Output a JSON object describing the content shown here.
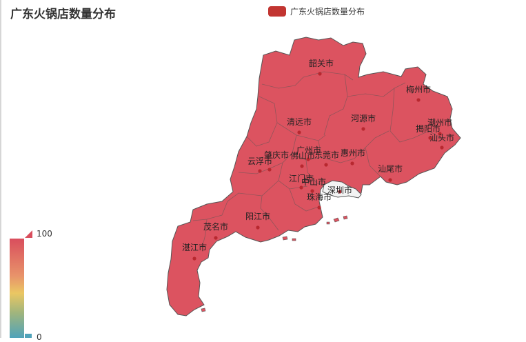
{
  "title": "广东火锅店数量分布",
  "legend": {
    "label": "广东火锅店数量分布",
    "color": "#c23531"
  },
  "visual_map": {
    "max_label": "100",
    "min_label": "0",
    "max": 100,
    "min": 0,
    "colors": [
      "#50a3ba",
      "#eac763",
      "#d94e5d"
    ]
  },
  "map": {
    "province_fill": "#dc5360",
    "no_data_fill": "#f3f3f3",
    "border_color": "#555555",
    "point_color": "#b8282f",
    "cities": [
      {
        "name": "韶关市"
      },
      {
        "name": "梅州市"
      },
      {
        "name": "潮州市"
      },
      {
        "name": "揭阳市"
      },
      {
        "name": "汕头市"
      },
      {
        "name": "清远市"
      },
      {
        "name": "河源市"
      },
      {
        "name": "广州市"
      },
      {
        "name": "肇庆市"
      },
      {
        "name": "佛山市"
      },
      {
        "name": "东莞市"
      },
      {
        "name": "惠州市"
      },
      {
        "name": "云浮市"
      },
      {
        "name": "汕尾市"
      },
      {
        "name": "江门市"
      },
      {
        "name": "中山市"
      },
      {
        "name": "深圳市"
      },
      {
        "name": "珠海市"
      },
      {
        "name": "阳江市"
      },
      {
        "name": "茂名市"
      },
      {
        "name": "湛江市"
      }
    ]
  }
}
